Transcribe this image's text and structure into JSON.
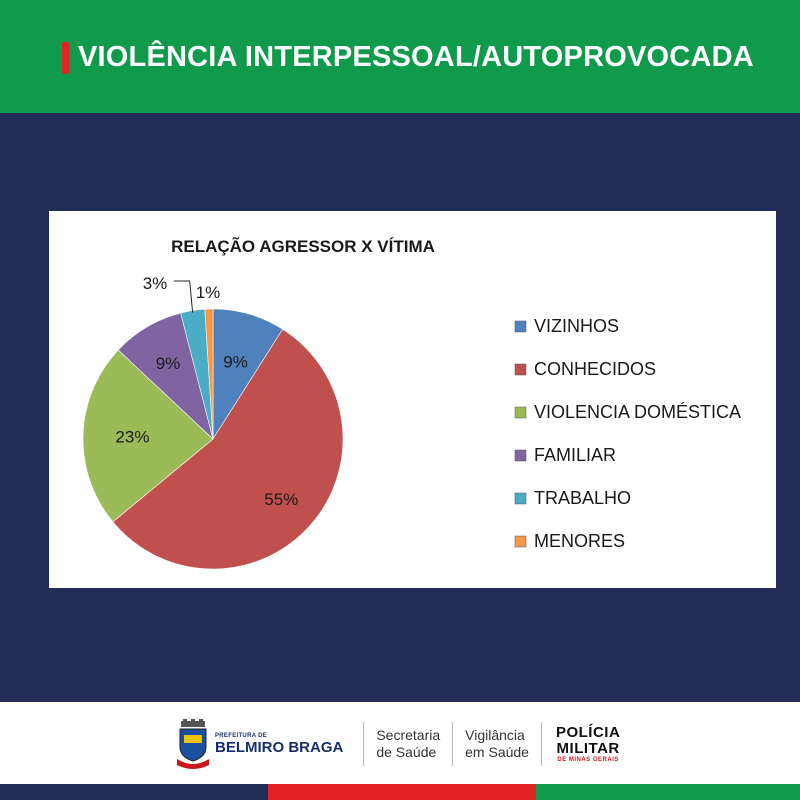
{
  "header": {
    "title": "VIOLÊNCIA INTERPESSOAL/AUTOPROVOCADA"
  },
  "chart_data": {
    "type": "pie",
    "title": "RELAÇÃO AGRESSOR X VÍTIMA",
    "legend_position": "right",
    "slices": [
      {
        "label": "VIZINHOS",
        "value": 9,
        "display": "9%",
        "color": "#4f81bd"
      },
      {
        "label": "CONHECIDOS",
        "value": 55,
        "display": "55%",
        "color": "#c0504d"
      },
      {
        "label": "VIOLENCIA DOMÉSTICA",
        "value": 23,
        "display": "23%",
        "color": "#9bbb59"
      },
      {
        "label": "FAMILIAR",
        "value": 9,
        "display": "9%",
        "color": "#8064a2"
      },
      {
        "label": "TRABALHO",
        "value": 3,
        "display": "3%",
        "color": "#4bacc6"
      },
      {
        "label": "MENORES",
        "value": 1,
        "display": "1%",
        "color": "#f79646"
      }
    ]
  },
  "footer": {
    "prefeitura_small": "PREFEITURA DE",
    "prefeitura_name": "BELMIRO BRAGA",
    "secretaria_line1": "Secretaria",
    "secretaria_line2": "de Saúde",
    "vigilancia_line1": "Vigilância",
    "vigilancia_line2": "em Saúde",
    "policia_line1": "POLÍCIA",
    "policia_line2": "MILITAR",
    "policia_sub": "DE MINAS GERAIS"
  },
  "colors": {
    "header_bg": "#0f9a4c",
    "body_bg": "#232b57",
    "stripe_navy": "#232b57",
    "stripe_red": "#e32223",
    "stripe_green": "#0f9a4c"
  }
}
